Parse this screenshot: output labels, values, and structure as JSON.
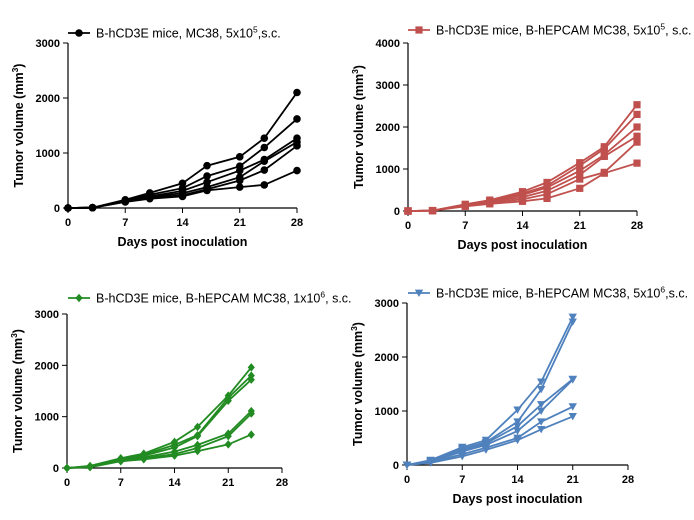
{
  "chart_data": [
    {
      "type": "line",
      "legend": {
        "text": "B-hCD3E mice, MC38, 5x10",
        "sup": "5",
        "suffix": ",s.c.",
        "marker": "circle",
        "color": "#000000"
      },
      "xlabel": "Days post inoculation",
      "ylabel": {
        "text": "Tumor volume (mm",
        "sup": "3",
        "suffix": ")"
      },
      "xlim": [
        0,
        28
      ],
      "ylim": [
        0,
        3000
      ],
      "xticks": [
        0,
        7,
        14,
        21,
        28
      ],
      "yticks": [
        0,
        1000,
        2000,
        3000
      ],
      "x": [
        0,
        3,
        7,
        10,
        14,
        17,
        21,
        24,
        28
      ],
      "series": [
        {
          "values": [
            0,
            5,
            150,
            275,
            450,
            770,
            930,
            1270,
            2100
          ]
        },
        {
          "values": [
            0,
            5,
            140,
            240,
            360,
            580,
            760,
            1100,
            1620
          ]
        },
        {
          "values": [
            0,
            5,
            130,
            210,
            310,
            470,
            680,
            880,
            1270
          ]
        },
        {
          "values": [
            0,
            5,
            120,
            200,
            270,
            380,
            560,
            850,
            1200
          ]
        },
        {
          "values": [
            0,
            5,
            115,
            185,
            230,
            340,
            500,
            690,
            1130
          ]
        },
        {
          "values": [
            0,
            5,
            110,
            170,
            210,
            320,
            380,
            420,
            680
          ]
        }
      ]
    },
    {
      "type": "line",
      "legend": {
        "text": "B-hCD3E mice, B-hEPCAM MC38, 5x10",
        "sup": "5",
        "suffix": ", s.c.",
        "marker": "square",
        "color": "#C0504D"
      },
      "xlabel": "Days post inoculation",
      "ylabel": {
        "text": "Tumor volume (mm",
        "sup": "3",
        "suffix": ")"
      },
      "xlim": [
        0,
        28
      ],
      "ylim": [
        0,
        4000
      ],
      "xticks": [
        0,
        7,
        14,
        21,
        28
      ],
      "yticks": [
        0,
        1000,
        2000,
        3000,
        4000
      ],
      "x": [
        0,
        3,
        7,
        10,
        14,
        17,
        21,
        24,
        28
      ],
      "series": [
        {
          "values": [
            0,
            10,
            160,
            260,
            460,
            680,
            1150,
            1530,
            2530
          ]
        },
        {
          "values": [
            0,
            10,
            150,
            240,
            420,
            600,
            1080,
            1480,
            2300
          ]
        },
        {
          "values": [
            0,
            10,
            140,
            220,
            380,
            560,
            960,
            1340,
            2000
          ]
        },
        {
          "values": [
            0,
            10,
            130,
            210,
            330,
            480,
            860,
            1300,
            1780
          ]
        },
        {
          "values": [
            0,
            10,
            120,
            190,
            280,
            400,
            760,
            920,
            1640
          ]
        },
        {
          "values": [
            0,
            10,
            110,
            170,
            230,
            300,
            540,
            900,
            1140
          ]
        }
      ]
    },
    {
      "type": "line",
      "legend": {
        "text": "B-hCD3E mice, B-hEPCAM MC38, 1x10",
        "sup": "6",
        "suffix": ", s.c.",
        "marker": "diamond",
        "color": "#228B22"
      },
      "xlabel": "",
      "ylabel": {
        "text": "Tumor volume (mm",
        "sup": "3",
        "suffix": ")"
      },
      "xlim": [
        0,
        28
      ],
      "ylim": [
        0,
        3000
      ],
      "xticks": [
        0,
        7,
        14,
        21,
        28
      ],
      "yticks": [
        0,
        1000,
        2000,
        3000
      ],
      "x": [
        0,
        3,
        7,
        10,
        14,
        17,
        21,
        24
      ],
      "series": [
        {
          "values": [
            0,
            40,
            190,
            280,
            510,
            800,
            1410,
            1960
          ]
        },
        {
          "values": [
            0,
            35,
            180,
            260,
            450,
            640,
            1370,
            1800
          ]
        },
        {
          "values": [
            0,
            30,
            165,
            240,
            400,
            620,
            1310,
            1720
          ]
        },
        {
          "values": [
            0,
            25,
            150,
            210,
            320,
            450,
            670,
            1110
          ]
        },
        {
          "values": [
            0,
            20,
            140,
            190,
            270,
            390,
            620,
            1060
          ]
        },
        {
          "values": [
            0,
            15,
            130,
            170,
            240,
            330,
            460,
            650
          ]
        }
      ]
    },
    {
      "type": "line",
      "legend": {
        "text": "B-hCD3E mice, B-hEPCAM MC38, 5x10",
        "sup": "6",
        "suffix": ",s.c.",
        "marker": "triangle-down",
        "color": "#4F81BD"
      },
      "xlabel": "Days post inoculation",
      "ylabel": {
        "text": "Tumor volume (mm",
        "sup": "3",
        "suffix": ")"
      },
      "xlim": [
        0,
        28
      ],
      "ylim": [
        0,
        3000
      ],
      "xticks": [
        0,
        7,
        14,
        21,
        28
      ],
      "yticks": [
        0,
        1000,
        2000,
        3000
      ],
      "x": [
        0,
        3,
        7,
        10,
        14,
        17,
        21
      ],
      "series": [
        {
          "values": [
            0,
            90,
            330,
            460,
            1020,
            1540,
            2740
          ]
        },
        {
          "values": [
            0,
            80,
            300,
            420,
            800,
            1400,
            2650
          ]
        },
        {
          "values": [
            0,
            70,
            280,
            400,
            720,
            1120,
            1590
          ]
        },
        {
          "values": [
            0,
            60,
            250,
            370,
            630,
            1000,
            1580
          ]
        },
        {
          "values": [
            0,
            50,
            200,
            320,
            500,
            800,
            1080
          ]
        },
        {
          "values": [
            0,
            40,
            160,
            280,
            460,
            660,
            900
          ]
        }
      ]
    }
  ]
}
